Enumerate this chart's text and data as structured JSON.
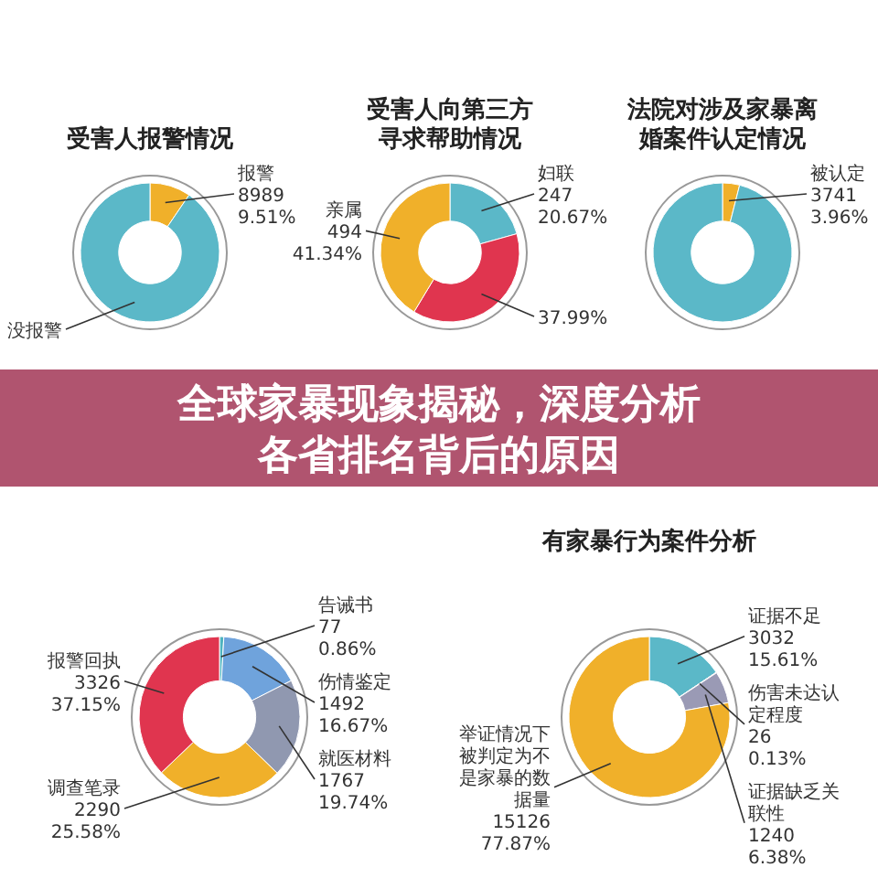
{
  "chart_data": [
    {
      "type": "donut",
      "title": "受害人报警情况",
      "categories": [
        "报警 8989",
        "没报警"
      ],
      "values": [
        9.51,
        90.49
      ],
      "value_labels": [
        "9.51%",
        null
      ],
      "colors": [
        "#f0b02a",
        "#5bb8c8"
      ]
    },
    {
      "type": "donut",
      "title": "受害人向第三方寻求帮助情况",
      "categories": [
        "妇联 247",
        null,
        "亲属 494"
      ],
      "values": [
        20.67,
        37.99,
        41.34
      ],
      "value_labels": [
        "20.67%",
        "37.99%",
        "41.34%"
      ],
      "colors": [
        "#5bb8c8",
        "#e0354f",
        "#f0b02a"
      ]
    },
    {
      "type": "donut",
      "title": "法院对涉及家暴离婚案件认定情况",
      "categories": [
        "被认定 3741",
        null
      ],
      "values": [
        3.96,
        96.04
      ],
      "value_labels": [
        "3.96%",
        null
      ],
      "colors": [
        "#f0b02a",
        "#5bb8c8"
      ]
    },
    {
      "type": "other",
      "title": "全球家暴现象揭秘，深度分析各省排名背后的原因"
    },
    {
      "type": "donut",
      "categories": [
        "告诫书 77",
        "伤情鉴定 1492",
        "就医材料 1767",
        "调查笔录 2290",
        "报警回执 3326"
      ],
      "values": [
        0.86,
        16.67,
        19.74,
        25.58,
        37.15
      ],
      "value_labels": [
        "0.86%",
        "16.67%",
        "19.74%",
        "25.58%",
        "37.15%"
      ],
      "colors": [
        "#4fb3bf",
        "#6fa3dc",
        "#9098b0",
        "#f0b02a",
        "#e0354f"
      ]
    },
    {
      "type": "donut",
      "title": "有家暴行为案件分析",
      "categories": [
        "证据不足 3032",
        "伤害未达认定程度 26",
        "证据缺乏关联性 1240",
        "举证情况下被判定为不是家暴的数据量 15126"
      ],
      "values": [
        15.61,
        0.13,
        6.38,
        77.87
      ],
      "value_labels": [
        "15.61%",
        "0.13%",
        "6.38%",
        "77.87%"
      ],
      "colors": [
        "#5bb8c8",
        "#d04060",
        "#9a9ab5",
        "#f0b02a"
      ]
    }
  ]
}
